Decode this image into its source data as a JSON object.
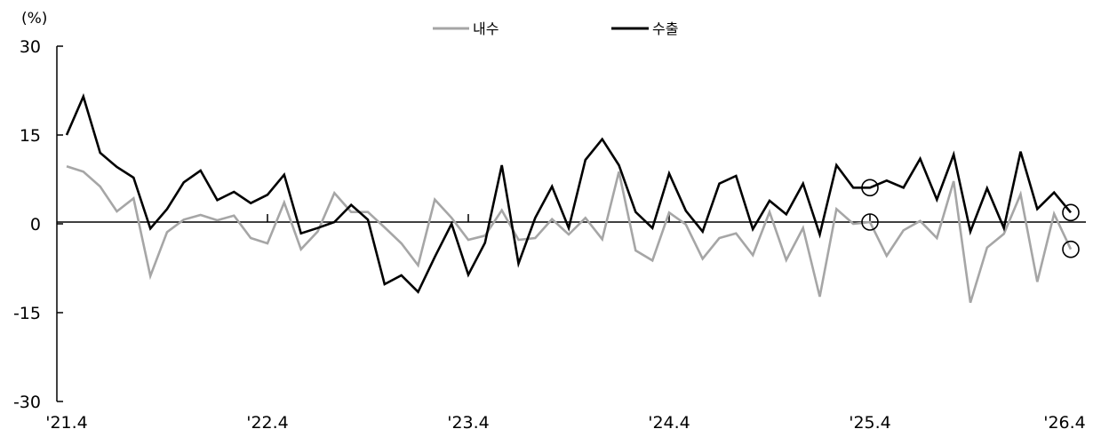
{
  "chart_data": {
    "type": "line",
    "unit_label": "(%)",
    "ylim": [
      -30,
      30
    ],
    "yticks": [
      30,
      15,
      0,
      -15,
      -30
    ],
    "xtick_labels": [
      "'21.4",
      "'22.4",
      "'23.4",
      "'24.4",
      "'25.4",
      "'26.4"
    ],
    "x_start": "2021-04",
    "x_end": "2026-04",
    "legend": {
      "placement": "top-center"
    },
    "series": [
      {
        "name": "내수",
        "color": "#a6a6a6",
        "values": [
          9.7,
          8.8,
          6.3,
          2.1,
          4.3,
          -8.8,
          -1.4,
          0.7,
          1.5,
          0.6,
          1.4,
          -2.4,
          -3.3,
          3.6,
          -4.3,
          -1.3,
          5.2,
          2.0,
          2.0,
          -0.6,
          -3.3,
          -7.0,
          4.1,
          1.0,
          -2.7,
          -2.0,
          2.3,
          -2.7,
          -2.4,
          0.8,
          -1.8,
          1.0,
          -2.6,
          8.8,
          -4.5,
          -6.2,
          1.9,
          -0.1,
          -5.9,
          -2.4,
          -1.6,
          -5.3,
          2.0,
          -6.1,
          -0.7,
          -12.3,
          2.5,
          0.0,
          0.3,
          -5.4,
          -1.1,
          0.5,
          -2.4,
          7.2,
          -13.3,
          -4.0,
          -1.7,
          5.0,
          -9.8,
          1.7,
          -4.3
        ]
      },
      {
        "name": "수출",
        "color": "#000000",
        "values": [
          15.0,
          21.5,
          12.0,
          9.6,
          7.8,
          -0.8,
          2.5,
          7.0,
          9.0,
          4.0,
          5.4,
          3.5,
          4.9,
          8.3,
          -1.6,
          -0.7,
          0.3,
          3.2,
          0.7,
          -10.2,
          -8.7,
          -11.5,
          -5.6,
          0.0,
          -8.6,
          -3.2,
          9.9,
          -6.7,
          1.0,
          6.3,
          -0.7,
          10.8,
          14.3,
          9.9,
          2.0,
          -0.7,
          8.5,
          2.2,
          -1.3,
          6.8,
          8.1,
          -0.9,
          3.9,
          1.6,
          6.8,
          -1.8,
          9.9,
          6.1,
          6.1,
          7.3,
          6.1,
          11.0,
          4.1,
          11.7,
          -1.3,
          6.0,
          -0.7,
          12.2,
          2.5,
          5.3,
          1.9
        ]
      }
    ],
    "highlighted_points": [
      {
        "series": "수출",
        "x": "2025-04",
        "y": 6.1
      },
      {
        "series": "내수",
        "x": "2025-04",
        "y": 0.3
      },
      {
        "series": "수출",
        "x": "2026-04",
        "y": 1.9
      },
      {
        "series": "내수",
        "x": "2026-04",
        "y": -4.3
      }
    ]
  }
}
